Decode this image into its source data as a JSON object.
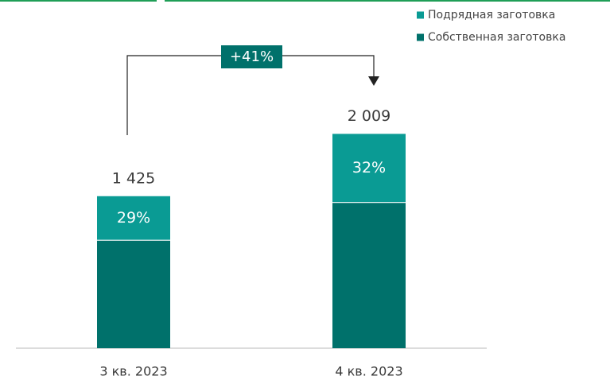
{
  "chart_data": {
    "type": "stacked_bar",
    "categories": [
      "3 кв. 2023",
      "4 кв. 2023"
    ],
    "series": [
      {
        "name": "Собственная заготовка",
        "color": "#00716b",
        "values": [
          1012,
          1366
        ]
      },
      {
        "name": "Подрядная заготовка",
        "color": "#0a9b94",
        "values": [
          413,
          643
        ],
        "value_labels": [
          "29%",
          "32%"
        ]
      }
    ],
    "totals": [
      1425,
      2009
    ],
    "total_labels": [
      "1 425",
      "2 009"
    ],
    "annotation": "+41%"
  }
}
